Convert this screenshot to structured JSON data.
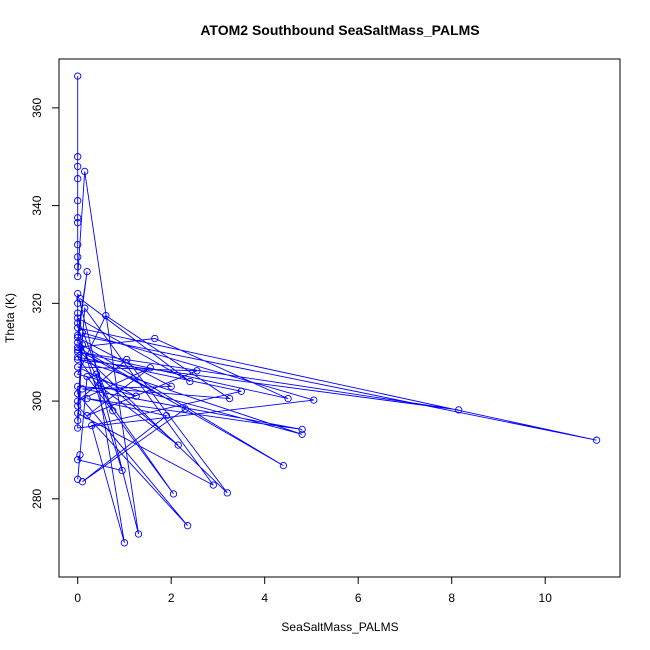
{
  "chart_data": {
    "type": "line",
    "title": "ATOM2 Southbound SeaSaltMass_PALMS",
    "xlabel": "SeaSaltMass_PALMS",
    "ylabel": "Theta (K)",
    "xlim": [
      -0.4,
      11.6
    ],
    "ylim": [
      264,
      370
    ],
    "x_ticks": [
      0,
      2,
      4,
      6,
      8,
      10
    ],
    "y_ticks": [
      280,
      300,
      320,
      340,
      360
    ],
    "grid": false,
    "legend": "none",
    "markers": "open-circle",
    "series": [
      {
        "color": "#0000ff",
        "points": [
          [
            0.0,
            366.5
          ],
          [
            0.0,
            350.0
          ],
          [
            0.0,
            348.0
          ],
          [
            0.0,
            345.5
          ],
          [
            0.0,
            341.0
          ],
          [
            0.0,
            337.5
          ],
          [
            0.0,
            336.5
          ],
          [
            0.0,
            332.0
          ],
          [
            0.0,
            329.5
          ],
          [
            0.0,
            327.5
          ],
          [
            0.0,
            325.5
          ],
          [
            0.15,
            347.0
          ],
          [
            1.3,
            272.8
          ],
          [
            0.0,
            322.0
          ],
          [
            0.0,
            320.0
          ],
          [
            0.0,
            318.0
          ],
          [
            0.0,
            316.0
          ],
          [
            0.0,
            315.0
          ],
          [
            11.1,
            292.0
          ],
          [
            0.0,
            313.5
          ],
          [
            0.2,
            326.5
          ],
          [
            0.0,
            312.0
          ],
          [
            4.4,
            286.8
          ],
          [
            0.0,
            311.0
          ],
          [
            1.65,
            312.8
          ],
          [
            4.5,
            300.5
          ],
          [
            0.0,
            310.0
          ],
          [
            8.15,
            298.2
          ],
          [
            0.0,
            308.5
          ],
          [
            4.8,
            293.2
          ],
          [
            0.0,
            305.5
          ],
          [
            0.6,
            317.5
          ],
          [
            3.25,
            300.5
          ],
          [
            0.0,
            303.0
          ],
          [
            0.0,
            301.5
          ],
          [
            2.35,
            274.5
          ],
          [
            0.0,
            299.0
          ],
          [
            0.15,
            319.0
          ],
          [
            2.9,
            282.8
          ],
          [
            0.0,
            297.5
          ],
          [
            0.0,
            296.0
          ],
          [
            0.1,
            314.0
          ],
          [
            5.05,
            300.2
          ],
          [
            0.0,
            294.5
          ],
          [
            0.1,
            311.5
          ],
          [
            0.95,
            285.8
          ],
          [
            0.0,
            288.0
          ],
          [
            0.05,
            289.0
          ],
          [
            0.0,
            284.0
          ],
          [
            0.2,
            305.0
          ],
          [
            2.05,
            281.0
          ],
          [
            0.0,
            309.0
          ],
          [
            3.5,
            302.0
          ],
          [
            0.3,
            295.0
          ],
          [
            1.0,
            271.0
          ],
          [
            0.4,
            305.5
          ],
          [
            2.15,
            291.0
          ],
          [
            0.45,
            303.2
          ],
          [
            1.25,
            301.0
          ],
          [
            0.0,
            307.0
          ],
          [
            2.55,
            306.2
          ],
          [
            0.2,
            297.0
          ],
          [
            1.55,
            306.8
          ],
          [
            0.0,
            300.0
          ],
          [
            1.05,
            308.5
          ],
          [
            3.2,
            281.2
          ],
          [
            0.0,
            310.5
          ],
          [
            2.3,
            298.4
          ],
          [
            0.1,
            283.5
          ],
          [
            1.9,
            297.0
          ],
          [
            0.2,
            300.5
          ],
          [
            4.8,
            294.2
          ],
          [
            0.1,
            302.5
          ],
          [
            2.0,
            303.0
          ],
          [
            0.0,
            313.0
          ],
          [
            0.75,
            298.0
          ],
          [
            0.0,
            317.0
          ],
          [
            2.4,
            304.0
          ],
          [
            0.05,
            321.0
          ]
        ]
      }
    ]
  }
}
